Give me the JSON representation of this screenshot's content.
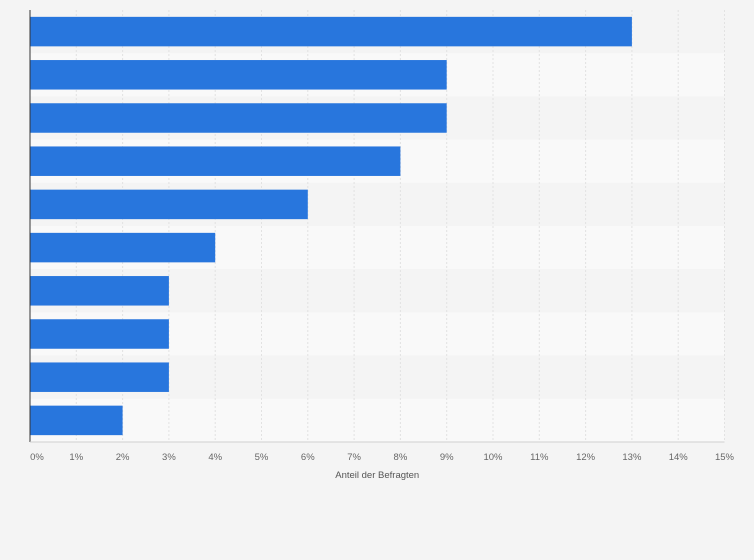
{
  "chart_data": {
    "type": "bar",
    "orientation": "horizontal",
    "categories": [
      "",
      "",
      "",
      "",
      "",
      "",
      "",
      "",
      "",
      ""
    ],
    "values": [
      13,
      9,
      9,
      8,
      6,
      4,
      3,
      3,
      3,
      2
    ],
    "title": "",
    "xlabel": "Anteil der Befragten",
    "ylabel": "",
    "xlim": [
      0,
      15
    ],
    "x_ticks": [
      0,
      1,
      2,
      3,
      4,
      5,
      6,
      7,
      8,
      9,
      10,
      11,
      12,
      13,
      14,
      15
    ],
    "tick_suffix": "%",
    "grid": true,
    "colors": {
      "bar": "#2876dd",
      "band_light": "#f9f9f9",
      "band_dark": "#f4f4f4",
      "grid": "#e2e2e2",
      "axis": "#333333"
    }
  }
}
